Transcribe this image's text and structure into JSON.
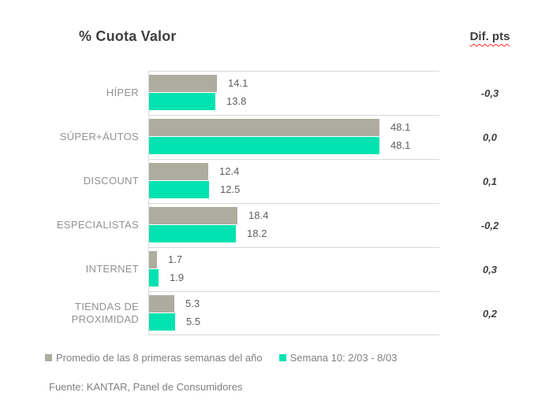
{
  "title": "% Cuota Valor",
  "dif_header": "Dif. pts",
  "chart_data": {
    "type": "bar",
    "orientation": "horizontal",
    "title": "% Cuota Valor",
    "categories": [
      "HÍPER",
      "SÚPER+ÁUTOS",
      "DISCOUNT",
      "ESPECIALISTAS",
      "INTERNET",
      "TIENDAS DE PROXIMIDAD"
    ],
    "series": [
      {
        "name": "Promedio de las 8 primeras semanas del año",
        "color": "#aeac9f",
        "values": [
          14.1,
          48.1,
          12.4,
          18.4,
          1.7,
          5.3
        ]
      },
      {
        "name": "Semana 10: 2/03 - 8/03",
        "color": "#00e3b0",
        "values": [
          13.8,
          48.1,
          12.5,
          18.2,
          1.9,
          5.5
        ]
      }
    ],
    "data_labels": true,
    "dif_pts_header": "Dif. pts",
    "dif_pts": [
      "-0,3",
      "0,0",
      "0,1",
      "-0,2",
      "0,3",
      "0,2"
    ],
    "xlim": [
      0,
      60.8
    ],
    "grid": true,
    "legend_position": "bottom"
  },
  "footer": {
    "source": "Fuente: KANTAR, Panel de Consumidores"
  },
  "colors": {
    "bar_average": "#aeac9f",
    "bar_week": "#00e3b0",
    "gridline": "#d9d9d9",
    "category_label": "#929292",
    "value_label": "#5f5f5f",
    "title_text": "#3f3f3f",
    "spellcheck_underline": "#ff2b2b"
  }
}
